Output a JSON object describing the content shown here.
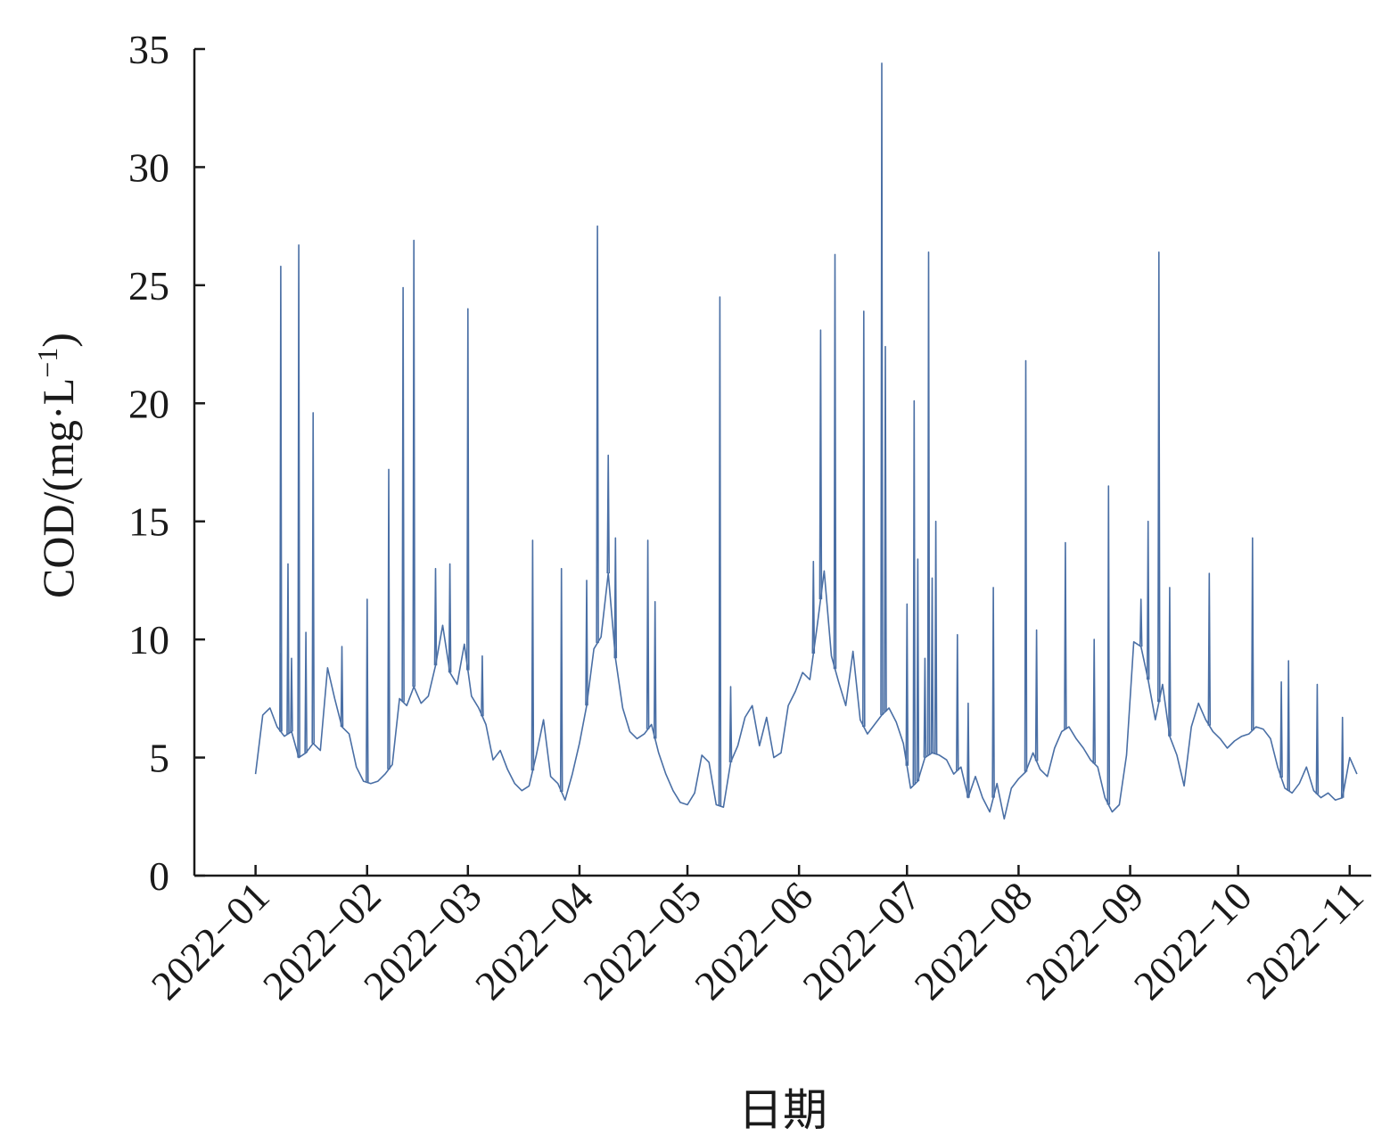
{
  "chart_data": {
    "type": "line",
    "xlabel": "日期",
    "ylabel_main": "COD/(mg·L",
    "ylabel_sup": "−1",
    "ylabel_close": ")",
    "ylim": [
      0,
      35
    ],
    "yticks": [
      0,
      5,
      10,
      15,
      20,
      25,
      30,
      35
    ],
    "xlim": [
      "2021-12-15",
      "2022-11-07"
    ],
    "xtick_labels": [
      "2022−01",
      "2022−02",
      "2022−03",
      "2022−04",
      "2022−05",
      "2022−06",
      "2022−07",
      "2022−08",
      "2022−09",
      "2022−10",
      "2022−11"
    ],
    "xtick_dates": [
      "2022-01-01",
      "2022-02-01",
      "2022-03-01",
      "2022-04-01",
      "2022-05-01",
      "2022-06-01",
      "2022-07-01",
      "2022-08-01",
      "2022-09-01",
      "2022-10-01",
      "2022-11-01"
    ],
    "grid": false,
    "color": "#4a6fa5",
    "series": [
      {
        "x": [
          "2022-01-01",
          "2022-01-03",
          "2022-01-05",
          "2022-01-07",
          "2022-01-09",
          "2022-01-11",
          "2022-01-13",
          "2022-01-15",
          "2022-01-17",
          "2022-01-19",
          "2022-01-21",
          "2022-01-23",
          "2022-01-25",
          "2022-01-27",
          "2022-01-29",
          "2022-01-31",
          "2022-02-02",
          "2022-02-04",
          "2022-02-06",
          "2022-02-08",
          "2022-02-10",
          "2022-02-12",
          "2022-02-14",
          "2022-02-16",
          "2022-02-18",
          "2022-02-20",
          "2022-02-22",
          "2022-02-24",
          "2022-02-26",
          "2022-02-28",
          "2022-03-02",
          "2022-03-04",
          "2022-03-06",
          "2022-03-08",
          "2022-03-10",
          "2022-03-12",
          "2022-03-14",
          "2022-03-16",
          "2022-03-18",
          "2022-03-20",
          "2022-03-22",
          "2022-03-24",
          "2022-03-26",
          "2022-03-28",
          "2022-03-30",
          "2022-04-01",
          "2022-04-03",
          "2022-04-05",
          "2022-04-07",
          "2022-04-09",
          "2022-04-11",
          "2022-04-13",
          "2022-04-15",
          "2022-04-17",
          "2022-04-19",
          "2022-04-21",
          "2022-04-23",
          "2022-04-25",
          "2022-04-27",
          "2022-04-29",
          "2022-05-01",
          "2022-05-03",
          "2022-05-05",
          "2022-05-07",
          "2022-05-09",
          "2022-05-11",
          "2022-05-13",
          "2022-05-15",
          "2022-05-17",
          "2022-05-19",
          "2022-05-21",
          "2022-05-23",
          "2022-05-25",
          "2022-05-27",
          "2022-05-29",
          "2022-05-31",
          "2022-06-02",
          "2022-06-04",
          "2022-06-06",
          "2022-06-08",
          "2022-06-10",
          "2022-06-12",
          "2022-06-14",
          "2022-06-16",
          "2022-06-18",
          "2022-06-20",
          "2022-06-22",
          "2022-06-24",
          "2022-06-26",
          "2022-06-28",
          "2022-06-30",
          "2022-07-02",
          "2022-07-04",
          "2022-07-06",
          "2022-07-08",
          "2022-07-10",
          "2022-07-12",
          "2022-07-14",
          "2022-07-16",
          "2022-07-18",
          "2022-07-20",
          "2022-07-22",
          "2022-07-24",
          "2022-07-26",
          "2022-07-28",
          "2022-07-30",
          "2022-08-01",
          "2022-08-03",
          "2022-08-05",
          "2022-08-07",
          "2022-08-09",
          "2022-08-11",
          "2022-08-13",
          "2022-08-15",
          "2022-08-17",
          "2022-08-19",
          "2022-08-21",
          "2022-08-23",
          "2022-08-25",
          "2022-08-27",
          "2022-08-29",
          "2022-08-31",
          "2022-09-02",
          "2022-09-04",
          "2022-09-06",
          "2022-09-08",
          "2022-09-10",
          "2022-09-12",
          "2022-09-14",
          "2022-09-16",
          "2022-09-18",
          "2022-09-20",
          "2022-09-22",
          "2022-09-24",
          "2022-09-26",
          "2022-09-28",
          "2022-09-30",
          "2022-10-02",
          "2022-10-04",
          "2022-10-06",
          "2022-10-08",
          "2022-10-10",
          "2022-10-12",
          "2022-10-14",
          "2022-10-16",
          "2022-10-18",
          "2022-10-20",
          "2022-10-22",
          "2022-10-24",
          "2022-10-26",
          "2022-10-28",
          "2022-10-30",
          "2022-11-01",
          "2022-11-03"
        ],
        "y": [
          4.3,
          6.8,
          7.1,
          6.3,
          5.9,
          6.1,
          5.0,
          5.2,
          5.6,
          5.3,
          8.8,
          7.5,
          6.3,
          6.0,
          4.6,
          4.0,
          3.9,
          4.0,
          4.3,
          4.7,
          7.5,
          7.2,
          8.0,
          7.3,
          7.6,
          8.9,
          10.6,
          8.6,
          8.1,
          9.8,
          7.6,
          7.1,
          6.4,
          4.9,
          5.3,
          4.5,
          3.9,
          3.6,
          3.8,
          5.1,
          6.6,
          4.2,
          3.9,
          3.2,
          4.3,
          5.6,
          7.2,
          9.6,
          10.1,
          12.8,
          9.2,
          7.1,
          6.1,
          5.8,
          6.0,
          6.4,
          5.2,
          4.3,
          3.6,
          3.1,
          3.0,
          3.5,
          5.1,
          4.8,
          3.0,
          2.9,
          4.8,
          5.5,
          6.7,
          7.2,
          5.5,
          6.7,
          5.0,
          5.2,
          7.2,
          7.8,
          8.6,
          8.3,
          10.5,
          12.9,
          9.3,
          8.2,
          7.2,
          9.5,
          6.6,
          6.0,
          6.4,
          6.8,
          7.1,
          6.5,
          5.6,
          3.7,
          4.0,
          5.0,
          5.2,
          5.1,
          4.9,
          4.3,
          4.6,
          3.3,
          4.2,
          3.3,
          2.7,
          3.9,
          2.4,
          3.7,
          4.1,
          4.4,
          5.2,
          4.5,
          4.2,
          5.4,
          6.1,
          6.3,
          5.8,
          5.4,
          4.9,
          4.6,
          3.3,
          2.7,
          3.0,
          5.1,
          9.9,
          9.7,
          8.3,
          6.6,
          8.1,
          5.9,
          5.1,
          3.8,
          6.3,
          7.3,
          6.6,
          6.1,
          5.8,
          5.4,
          5.7,
          5.9,
          6.0,
          6.3,
          6.2,
          5.8,
          4.6,
          3.7,
          3.5,
          3.9,
          4.6,
          3.6,
          3.3,
          3.5,
          3.2,
          3.3,
          5.0,
          4.3
        ]
      }
    ],
    "spikes": [
      {
        "x": "2022-01-08",
        "y": 9.4
      },
      {
        "x": "2022-01-11",
        "y": 9.2
      },
      {
        "x": "2022-01-08",
        "y": 25.8
      },
      {
        "x": "2022-01-10",
        "y": 13.2
      },
      {
        "x": "2022-01-13",
        "y": 26.7
      },
      {
        "x": "2022-01-15",
        "y": 10.3
      },
      {
        "x": "2022-01-17",
        "y": 19.6
      },
      {
        "x": "2022-01-25",
        "y": 9.7
      },
      {
        "x": "2022-02-01",
        "y": 11.7
      },
      {
        "x": "2022-02-07",
        "y": 17.2
      },
      {
        "x": "2022-02-11",
        "y": 24.9
      },
      {
        "x": "2022-02-14",
        "y": 26.9
      },
      {
        "x": "2022-02-20",
        "y": 13.0
      },
      {
        "x": "2022-02-24",
        "y": 13.2
      },
      {
        "x": "2022-03-01",
        "y": 24.0
      },
      {
        "x": "2022-03-05",
        "y": 9.3
      },
      {
        "x": "2022-03-19",
        "y": 14.2
      },
      {
        "x": "2022-03-27",
        "y": 13.0
      },
      {
        "x": "2022-04-03",
        "y": 12.5
      },
      {
        "x": "2022-04-06",
        "y": 27.5
      },
      {
        "x": "2022-04-09",
        "y": 17.8
      },
      {
        "x": "2022-04-11",
        "y": 14.3
      },
      {
        "x": "2022-04-20",
        "y": 14.2
      },
      {
        "x": "2022-04-22",
        "y": 11.6
      },
      {
        "x": "2022-05-10",
        "y": 24.5
      },
      {
        "x": "2022-05-13",
        "y": 8.0
      },
      {
        "x": "2022-06-05",
        "y": 13.3
      },
      {
        "x": "2022-06-07",
        "y": 23.1
      },
      {
        "x": "2022-06-11",
        "y": 26.3
      },
      {
        "x": "2022-06-19",
        "y": 23.9
      },
      {
        "x": "2022-06-24",
        "y": 34.4
      },
      {
        "x": "2022-06-25",
        "y": 22.4
      },
      {
        "x": "2022-07-01",
        "y": 11.5
      },
      {
        "x": "2022-07-03",
        "y": 20.1
      },
      {
        "x": "2022-07-04",
        "y": 13.4
      },
      {
        "x": "2022-07-06",
        "y": 9.2
      },
      {
        "x": "2022-07-07",
        "y": 26.4
      },
      {
        "x": "2022-07-08",
        "y": 12.6
      },
      {
        "x": "2022-07-09",
        "y": 15.0
      },
      {
        "x": "2022-07-15",
        "y": 10.2
      },
      {
        "x": "2022-07-18",
        "y": 7.3
      },
      {
        "x": "2022-07-25",
        "y": 12.2
      },
      {
        "x": "2022-08-03",
        "y": 21.8
      },
      {
        "x": "2022-08-06",
        "y": 10.4
      },
      {
        "x": "2022-08-14",
        "y": 14.1
      },
      {
        "x": "2022-08-22",
        "y": 10.0
      },
      {
        "x": "2022-08-26",
        "y": 16.5
      },
      {
        "x": "2022-09-04",
        "y": 11.7
      },
      {
        "x": "2022-09-06",
        "y": 15.0
      },
      {
        "x": "2022-09-09",
        "y": 26.4
      },
      {
        "x": "2022-09-12",
        "y": 12.2
      },
      {
        "x": "2022-09-23",
        "y": 12.8
      },
      {
        "x": "2022-10-05",
        "y": 14.3
      },
      {
        "x": "2022-10-13",
        "y": 8.2
      },
      {
        "x": "2022-10-15",
        "y": 9.1
      },
      {
        "x": "2022-10-23",
        "y": 8.1
      },
      {
        "x": "2022-10-30",
        "y": 6.7
      }
    ]
  }
}
